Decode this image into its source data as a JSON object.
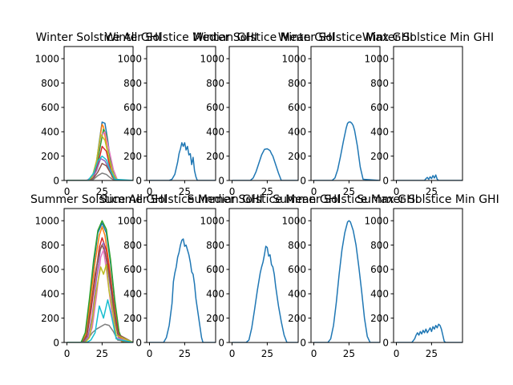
{
  "palette": [
    "#1f77b4",
    "#ff7f0e",
    "#2ca02c",
    "#d62728",
    "#9467bd",
    "#8c564b",
    "#e377c2",
    "#7f7f7f",
    "#bcbd22",
    "#17becf"
  ],
  "chart_data": [
    {
      "type": "line",
      "title": "Winter Solstice All GHI",
      "xlim": [
        -2,
        47
      ],
      "ylim": [
        0,
        1100
      ],
      "xticks": [
        0,
        25
      ],
      "yticks": [
        0,
        200,
        400,
        600,
        800,
        1000
      ],
      "series": [
        {
          "x": [
            0,
            14,
            18,
            21,
            23,
            25,
            27,
            29,
            31,
            33,
            36,
            47
          ],
          "y": [
            0,
            0,
            30,
            150,
            320,
            480,
            470,
            330,
            160,
            40,
            0,
            0
          ]
        },
        {
          "x": [
            0,
            15,
            19,
            22,
            24,
            25,
            26,
            28,
            30,
            32,
            35,
            47
          ],
          "y": [
            0,
            0,
            40,
            200,
            390,
            460,
            440,
            300,
            150,
            30,
            0,
            0
          ]
        },
        {
          "x": [
            0,
            14,
            18,
            21,
            24,
            26,
            28,
            30,
            33,
            36,
            47
          ],
          "y": [
            0,
            0,
            20,
            110,
            300,
            420,
            380,
            230,
            80,
            0,
            0
          ]
        },
        {
          "x": [
            0,
            15,
            19,
            22,
            25,
            28,
            31,
            34,
            47
          ],
          "y": [
            0,
            0,
            30,
            130,
            280,
            240,
            90,
            0,
            0
          ]
        },
        {
          "x": [
            0,
            14,
            18,
            21,
            24,
            27,
            30,
            33,
            36,
            47
          ],
          "y": [
            0,
            0,
            20,
            80,
            180,
            160,
            90,
            20,
            0,
            0
          ]
        },
        {
          "x": [
            0,
            15,
            19,
            22,
            25,
            28,
            31,
            34,
            47
          ],
          "y": [
            0,
            0,
            20,
            70,
            140,
            120,
            60,
            0,
            0
          ]
        },
        {
          "x": [
            0,
            14,
            18,
            21,
            24,
            27,
            30,
            33,
            36,
            47
          ],
          "y": [
            0,
            0,
            30,
            150,
            360,
            400,
            250,
            90,
            0,
            0
          ]
        },
        {
          "x": [
            0,
            16,
            19,
            22,
            25,
            28,
            31,
            34,
            47
          ],
          "y": [
            0,
            0,
            10,
            40,
            60,
            50,
            20,
            0,
            0
          ]
        },
        {
          "x": [
            0,
            15,
            18,
            21,
            24,
            27,
            30,
            33,
            36,
            47
          ],
          "y": [
            0,
            0,
            30,
            160,
            380,
            330,
            180,
            50,
            0,
            0
          ]
        },
        {
          "x": [
            0,
            15,
            19,
            22,
            25,
            28,
            31,
            34,
            47
          ],
          "y": [
            0,
            0,
            60,
            160,
            200,
            170,
            80,
            10,
            0
          ]
        }
      ]
    },
    {
      "type": "line",
      "title": "Winter Solstice Median GHI",
      "xlim": [
        -2,
        47
      ],
      "ylim": [
        0,
        1100
      ],
      "xticks": [
        0,
        25
      ],
      "yticks": [
        0,
        200,
        400,
        600,
        800,
        1000
      ],
      "series": [
        {
          "x": [
            0,
            14,
            16,
            18,
            20,
            21,
            22,
            23,
            24,
            25,
            26,
            27,
            28,
            29,
            30,
            31,
            32,
            33,
            34,
            47
          ],
          "y": [
            0,
            0,
            10,
            50,
            150,
            220,
            260,
            310,
            280,
            310,
            250,
            280,
            210,
            220,
            130,
            190,
            80,
            30,
            0,
            0
          ]
        }
      ]
    },
    {
      "type": "line",
      "title": "Winter Solstice Mean GHI",
      "xlim": [
        -2,
        47
      ],
      "ylim": [
        0,
        1100
      ],
      "xticks": [
        0,
        25
      ],
      "yticks": [
        0,
        200,
        400,
        600,
        800,
        1000
      ],
      "series": [
        {
          "x": [
            0,
            13,
            15,
            17,
            19,
            21,
            23,
            25,
            27,
            28,
            29,
            31,
            33,
            35,
            47
          ],
          "y": [
            0,
            0,
            20,
            70,
            140,
            210,
            255,
            260,
            245,
            220,
            200,
            130,
            60,
            0,
            0
          ]
        }
      ]
    },
    {
      "type": "line",
      "title": "Winter Solstice Max GHI",
      "xlim": [
        -2,
        47
      ],
      "ylim": [
        0,
        1100
      ],
      "xticks": [
        0,
        25
      ],
      "yticks": [
        0,
        200,
        400,
        600,
        800,
        1000
      ],
      "series": [
        {
          "x": [
            0,
            13,
            15,
            17,
            19,
            21,
            23,
            24,
            25,
            26,
            27,
            28,
            29,
            31,
            33,
            35,
            47
          ],
          "y": [
            0,
            0,
            20,
            90,
            200,
            320,
            430,
            470,
            480,
            480,
            470,
            450,
            410,
            280,
            110,
            10,
            0
          ]
        }
      ]
    },
    {
      "type": "line",
      "title": "Winter Solstice Min GHI",
      "xlim": [
        -2,
        47
      ],
      "ylim": [
        0,
        1100
      ],
      "xticks": [
        0,
        25
      ],
      "yticks": [
        0,
        200,
        400,
        600,
        800,
        1000
      ],
      "series": [
        {
          "x": [
            0,
            20,
            21,
            22,
            23,
            24,
            25,
            26,
            27,
            28,
            29,
            30,
            47
          ],
          "y": [
            0,
            0,
            15,
            25,
            10,
            30,
            15,
            40,
            20,
            45,
            10,
            0,
            0
          ]
        }
      ]
    },
    {
      "type": "line",
      "title": "Summer Solstice All GHI",
      "xlim": [
        -2,
        47
      ],
      "ylim": [
        0,
        1100
      ],
      "xticks": [
        0,
        25
      ],
      "yticks": [
        0,
        200,
        400,
        600,
        800,
        1000
      ],
      "series": [
        {
          "x": [
            0,
            10,
            13,
            16,
            19,
            22,
            25,
            28,
            31,
            34,
            37,
            40,
            47
          ],
          "y": [
            0,
            0,
            60,
            320,
            640,
            900,
            980,
            900,
            650,
            330,
            80,
            0,
            0
          ]
        },
        {
          "x": [
            0,
            11,
            14,
            17,
            20,
            23,
            25,
            27,
            30,
            33,
            36,
            39,
            47
          ],
          "y": [
            0,
            0,
            90,
            380,
            660,
            880,
            950,
            880,
            640,
            350,
            110,
            0,
            0
          ]
        },
        {
          "x": [
            0,
            10,
            13,
            16,
            19,
            22,
            25,
            28,
            31,
            34,
            37,
            40,
            47
          ],
          "y": [
            0,
            0,
            80,
            360,
            680,
            920,
            1000,
            930,
            680,
            350,
            90,
            0,
            0
          ]
        },
        {
          "x": [
            0,
            11,
            14,
            17,
            20,
            23,
            25,
            28,
            31,
            34,
            37,
            47
          ],
          "y": [
            0,
            0,
            40,
            250,
            520,
            780,
            860,
            760,
            520,
            240,
            40,
            0
          ]
        },
        {
          "x": [
            0,
            12,
            15,
            18,
            21,
            24,
            26,
            28,
            31,
            34,
            37,
            47
          ],
          "y": [
            0,
            0,
            50,
            220,
            520,
            780,
            820,
            690,
            440,
            190,
            20,
            0
          ]
        },
        {
          "x": [
            0,
            11,
            14,
            17,
            20,
            23,
            25,
            27,
            30,
            33,
            36,
            47
          ],
          "y": [
            0,
            0,
            60,
            300,
            560,
            740,
            800,
            740,
            560,
            300,
            70,
            0
          ]
        },
        {
          "x": [
            0,
            12,
            15,
            18,
            21,
            24,
            26,
            28,
            30,
            32,
            35,
            47
          ],
          "y": [
            0,
            0,
            30,
            120,
            380,
            700,
            760,
            600,
            420,
            230,
            40,
            0
          ]
        },
        {
          "x": [
            0,
            12,
            15,
            18,
            21,
            24,
            27,
            30,
            33,
            36,
            47
          ],
          "y": [
            0,
            0,
            30,
            80,
            110,
            130,
            150,
            140,
            90,
            20,
            0
          ]
        },
        {
          "x": [
            0,
            13,
            16,
            18,
            20,
            22,
            24,
            26,
            28,
            30,
            32,
            35,
            47
          ],
          "y": [
            0,
            0,
            40,
            180,
            360,
            500,
            620,
            560,
            640,
            420,
            300,
            60,
            0
          ]
        },
        {
          "x": [
            0,
            14,
            17,
            20,
            23,
            26,
            29,
            32,
            35,
            47
          ],
          "y": [
            0,
            0,
            20,
            80,
            300,
            200,
            350,
            200,
            30,
            0
          ]
        }
      ]
    },
    {
      "type": "line",
      "title": "Summer Solstice Median GHI",
      "xlim": [
        -2,
        47
      ],
      "ylim": [
        0,
        1100
      ],
      "xticks": [
        0,
        25
      ],
      "yticks": [
        0,
        200,
        400,
        600,
        800,
        1000
      ],
      "series": [
        {
          "x": [
            0,
            10,
            12,
            14,
            16,
            17,
            18,
            19,
            20,
            21,
            22,
            23,
            24,
            25,
            26,
            27,
            28,
            29,
            30,
            31,
            32,
            33,
            35,
            37,
            38,
            47
          ],
          "y": [
            0,
            0,
            40,
            140,
            320,
            500,
            570,
            620,
            700,
            740,
            800,
            840,
            850,
            790,
            800,
            760,
            720,
            660,
            580,
            560,
            480,
            360,
            200,
            40,
            0,
            0
          ]
        }
      ]
    },
    {
      "type": "line",
      "title": "Summer Solstice Mean GHI",
      "xlim": [
        -2,
        47
      ],
      "ylim": [
        0,
        1100
      ],
      "xticks": [
        0,
        25
      ],
      "yticks": [
        0,
        200,
        400,
        600,
        800,
        1000
      ],
      "series": [
        {
          "x": [
            0,
            10,
            12,
            14,
            16,
            18,
            19,
            20,
            21,
            22,
            23,
            24,
            25,
            26,
            27,
            28,
            29,
            30,
            31,
            32,
            33,
            35,
            37,
            39,
            47
          ],
          "y": [
            0,
            0,
            20,
            120,
            270,
            430,
            500,
            570,
            620,
            660,
            720,
            790,
            780,
            710,
            720,
            640,
            620,
            560,
            460,
            380,
            300,
            170,
            60,
            0,
            0
          ]
        }
      ]
    },
    {
      "type": "line",
      "title": "Summer Solstice Max GHI",
      "xlim": [
        -2,
        47
      ],
      "ylim": [
        0,
        1100
      ],
      "xticks": [
        0,
        25
      ],
      "yticks": [
        0,
        200,
        400,
        600,
        800,
        1000
      ],
      "series": [
        {
          "x": [
            0,
            10,
            12,
            14,
            16,
            18,
            20,
            22,
            24,
            25,
            26,
            28,
            30,
            32,
            34,
            36,
            38,
            40,
            47
          ],
          "y": [
            0,
            0,
            30,
            140,
            330,
            560,
            760,
            900,
            990,
            1000,
            990,
            920,
            800,
            620,
            420,
            200,
            50,
            0,
            0
          ]
        }
      ]
    },
    {
      "type": "line",
      "title": "Summer Solstice Min GHI",
      "xlim": [
        -2,
        47
      ],
      "ylim": [
        0,
        1100
      ],
      "xticks": [
        0,
        25
      ],
      "yticks": [
        0,
        200,
        400,
        600,
        800,
        1000
      ],
      "series": [
        {
          "x": [
            0,
            11,
            13,
            14,
            15,
            16,
            17,
            18,
            19,
            20,
            21,
            22,
            23,
            24,
            25,
            26,
            27,
            28,
            29,
            30,
            31,
            32,
            33,
            34,
            35,
            37,
            47
          ],
          "y": [
            0,
            0,
            30,
            60,
            80,
            60,
            90,
            70,
            100,
            80,
            110,
            80,
            100,
            120,
            90,
            130,
            110,
            140,
            120,
            150,
            140,
            110,
            60,
            10,
            0,
            0,
            0
          ]
        }
      ]
    }
  ]
}
